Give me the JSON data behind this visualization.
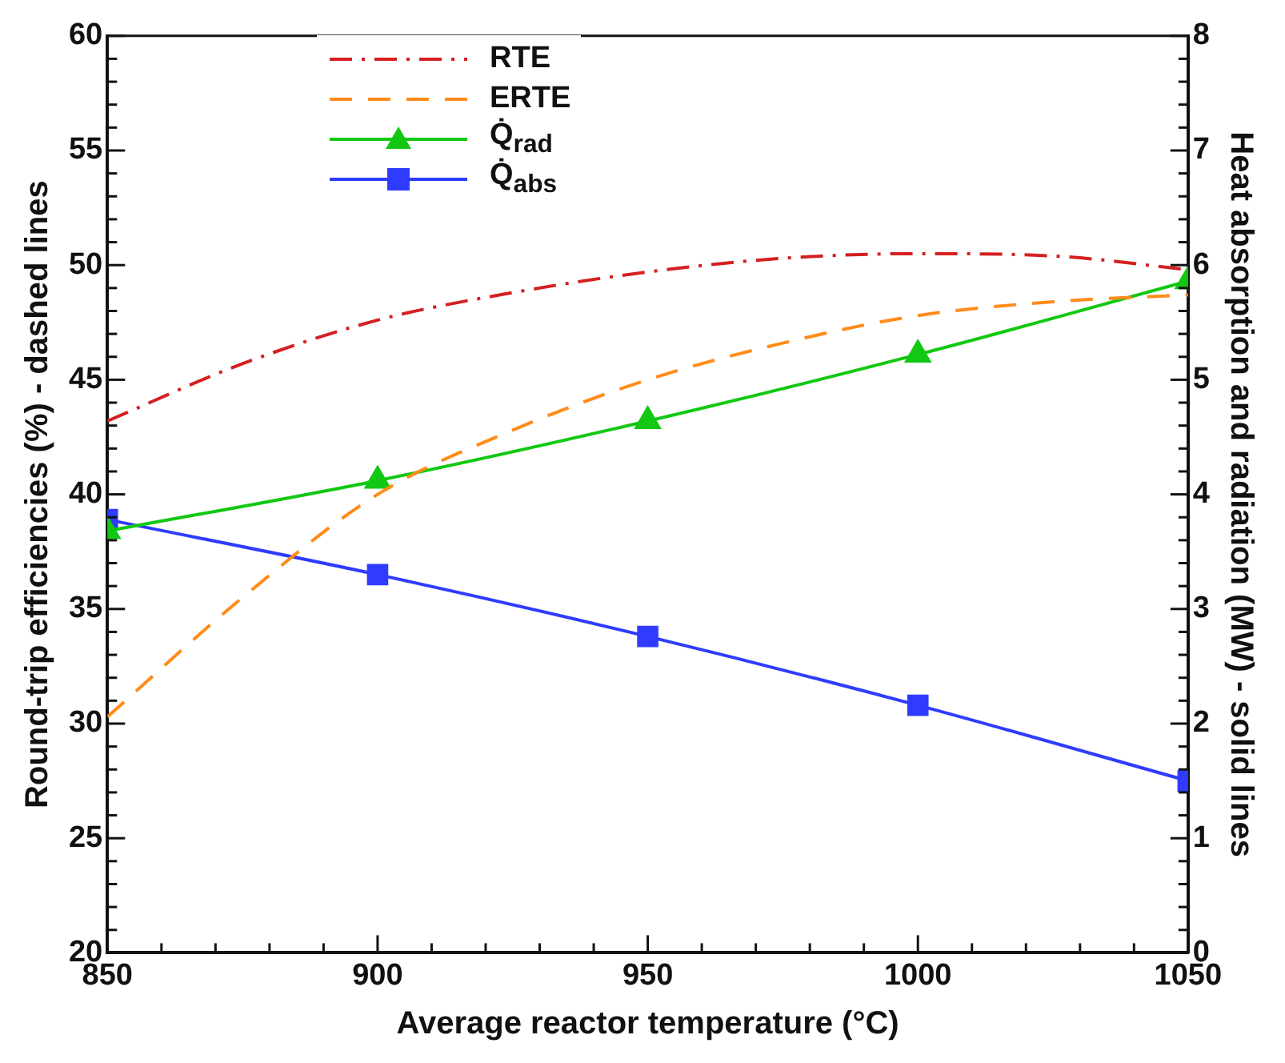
{
  "chart_data": {
    "type": "line",
    "xlabel": "Average reactor temperature (°C)",
    "ylabel": "Round-trip efficiencies (%) - dashed lines",
    "y2label": "Heat absorption and radiation (MW) - solid lines",
    "x": [
      850,
      875,
      900,
      925,
      950,
      975,
      1000,
      1025,
      1050
    ],
    "series": [
      {
        "name": "RTE",
        "color": "#d42020",
        "line_style": "dashdot",
        "marker": "none",
        "values": [
          43.2,
          45.7,
          47.6,
          48.8,
          49.7,
          50.3,
          50.5,
          50.4,
          49.8
        ]
      },
      {
        "name": "ERTE",
        "color": "#ff8c1a",
        "line_style": "dashed",
        "marker": "none",
        "values": [
          30.3,
          35.5,
          40.0,
          42.8,
          45.0,
          46.6,
          47.8,
          48.4,
          48.7
        ]
      },
      {
        "name": "Q̇$_{rad}$",
        "color": "#12c812",
        "line_style": "solid",
        "marker": "triangle",
        "axis": "y2",
        "x": [
          850,
          900,
          950,
          1000,
          1050
        ],
        "values": [
          3.68,
          4.12,
          4.64,
          5.22,
          5.86
        ]
      },
      {
        "name": "Q̇$_{abs}$",
        "color": "#2f3cff",
        "line_style": "solid",
        "marker": "square",
        "axis": "y2",
        "x": [
          850,
          900,
          950,
          1000,
          1050
        ],
        "values": [
          3.78,
          3.3,
          2.76,
          2.16,
          1.5
        ]
      }
    ],
    "xlim": [
      850,
      1050
    ],
    "xticks": [
      850,
      {
        "value": 860,
        "label": null
      },
      {
        "value": 870,
        "label": null
      },
      {
        "value": 880,
        "label": null
      },
      {
        "value": 890,
        "label": null
      },
      900,
      {
        "value": 910,
        "label": null
      },
      {
        "value": 920,
        "label": null
      },
      {
        "value": 930,
        "label": null
      },
      {
        "value": 940,
        "label": null
      },
      950,
      {
        "value": 960,
        "label": null
      },
      {
        "value": 970,
        "label": null
      },
      {
        "value": 980,
        "label": null
      },
      {
        "value": 990,
        "label": null
      },
      1000,
      {
        "value": 1010,
        "label": null
      },
      {
        "value": 1020,
        "label": null
      },
      {
        "value": 1030,
        "label": null
      },
      {
        "value": 1040,
        "label": null
      },
      1050
    ],
    "ylim": [
      20,
      60
    ],
    "yticks": [
      20,
      {
        "value": 21,
        "label": null
      },
      {
        "value": 22,
        "label": null
      },
      {
        "value": 23,
        "label": null
      },
      {
        "value": 24,
        "label": null
      },
      25,
      {
        "value": 26,
        "label": null
      },
      {
        "value": 27,
        "label": null
      },
      {
        "value": 28,
        "label": null
      },
      {
        "value": 29,
        "label": null
      },
      30,
      {
        "value": 31,
        "label": null
      },
      {
        "value": 32,
        "label": null
      },
      {
        "value": 33,
        "label": null
      },
      {
        "value": 34,
        "label": null
      },
      35,
      {
        "value": 36,
        "label": null
      },
      {
        "value": 37,
        "label": null
      },
      {
        "value": 38,
        "label": null
      },
      {
        "value": 39,
        "label": null
      },
      40,
      {
        "value": 41,
        "label": null
      },
      {
        "value": 42,
        "label": null
      },
      {
        "value": 43,
        "label": null
      },
      {
        "value": 44,
        "label": null
      },
      45,
      {
        "value": 46,
        "label": null
      },
      {
        "value": 47,
        "label": null
      },
      {
        "value": 48,
        "label": null
      },
      {
        "value": 49,
        "label": null
      },
      50,
      {
        "value": 51,
        "label": null
      },
      {
        "value": 52,
        "label": null
      },
      {
        "value": 53,
        "label": null
      },
      {
        "value": 54,
        "label": null
      },
      55,
      {
        "value": 56,
        "label": null
      },
      {
        "value": 57,
        "label": null
      },
      {
        "value": 58,
        "label": null
      },
      {
        "value": 59,
        "label": null
      },
      60
    ],
    "y2lim": [
      0,
      8
    ],
    "y2ticks": [
      0,
      {
        "value": 0.2,
        "label": null
      },
      {
        "value": 0.4,
        "label": null
      },
      {
        "value": 0.6,
        "label": null
      },
      {
        "value": 0.8,
        "label": null
      },
      1,
      {
        "value": 1.2,
        "label": null
      },
      {
        "value": 1.4,
        "label": null
      },
      {
        "value": 1.6,
        "label": null
      },
      {
        "value": 1.8,
        "label": null
      },
      2,
      {
        "value": 2.2,
        "label": null
      },
      {
        "value": 2.4,
        "label": null
      },
      {
        "value": 2.6,
        "label": null
      },
      {
        "value": 2.8,
        "label": null
      },
      3,
      {
        "value": 3.2,
        "label": null
      },
      {
        "value": 3.4,
        "label": null
      },
      {
        "value": 3.6,
        "label": null
      },
      {
        "value": 3.8,
        "label": null
      },
      4,
      {
        "value": 4.2,
        "label": null
      },
      {
        "value": 4.4,
        "label": null
      },
      {
        "value": 4.6,
        "label": null
      },
      {
        "value": 4.8,
        "label": null
      },
      5,
      {
        "value": 5.2,
        "label": null
      },
      {
        "value": 5.4,
        "label": null
      },
      {
        "value": 5.6,
        "label": null
      },
      {
        "value": 5.8,
        "label": null
      },
      6,
      {
        "value": 6.2,
        "label": null
      },
      {
        "value": 6.4,
        "label": null
      },
      {
        "value": 6.6,
        "label": null
      },
      {
        "value": 6.8,
        "label": null
      },
      7,
      {
        "value": 7.2,
        "label": null
      },
      {
        "value": 7.4,
        "label": null
      },
      {
        "value": 7.6,
        "label": null
      },
      {
        "value": 7.8,
        "label": null
      },
      8
    ],
    "grid": false,
    "legend": "top left"
  }
}
